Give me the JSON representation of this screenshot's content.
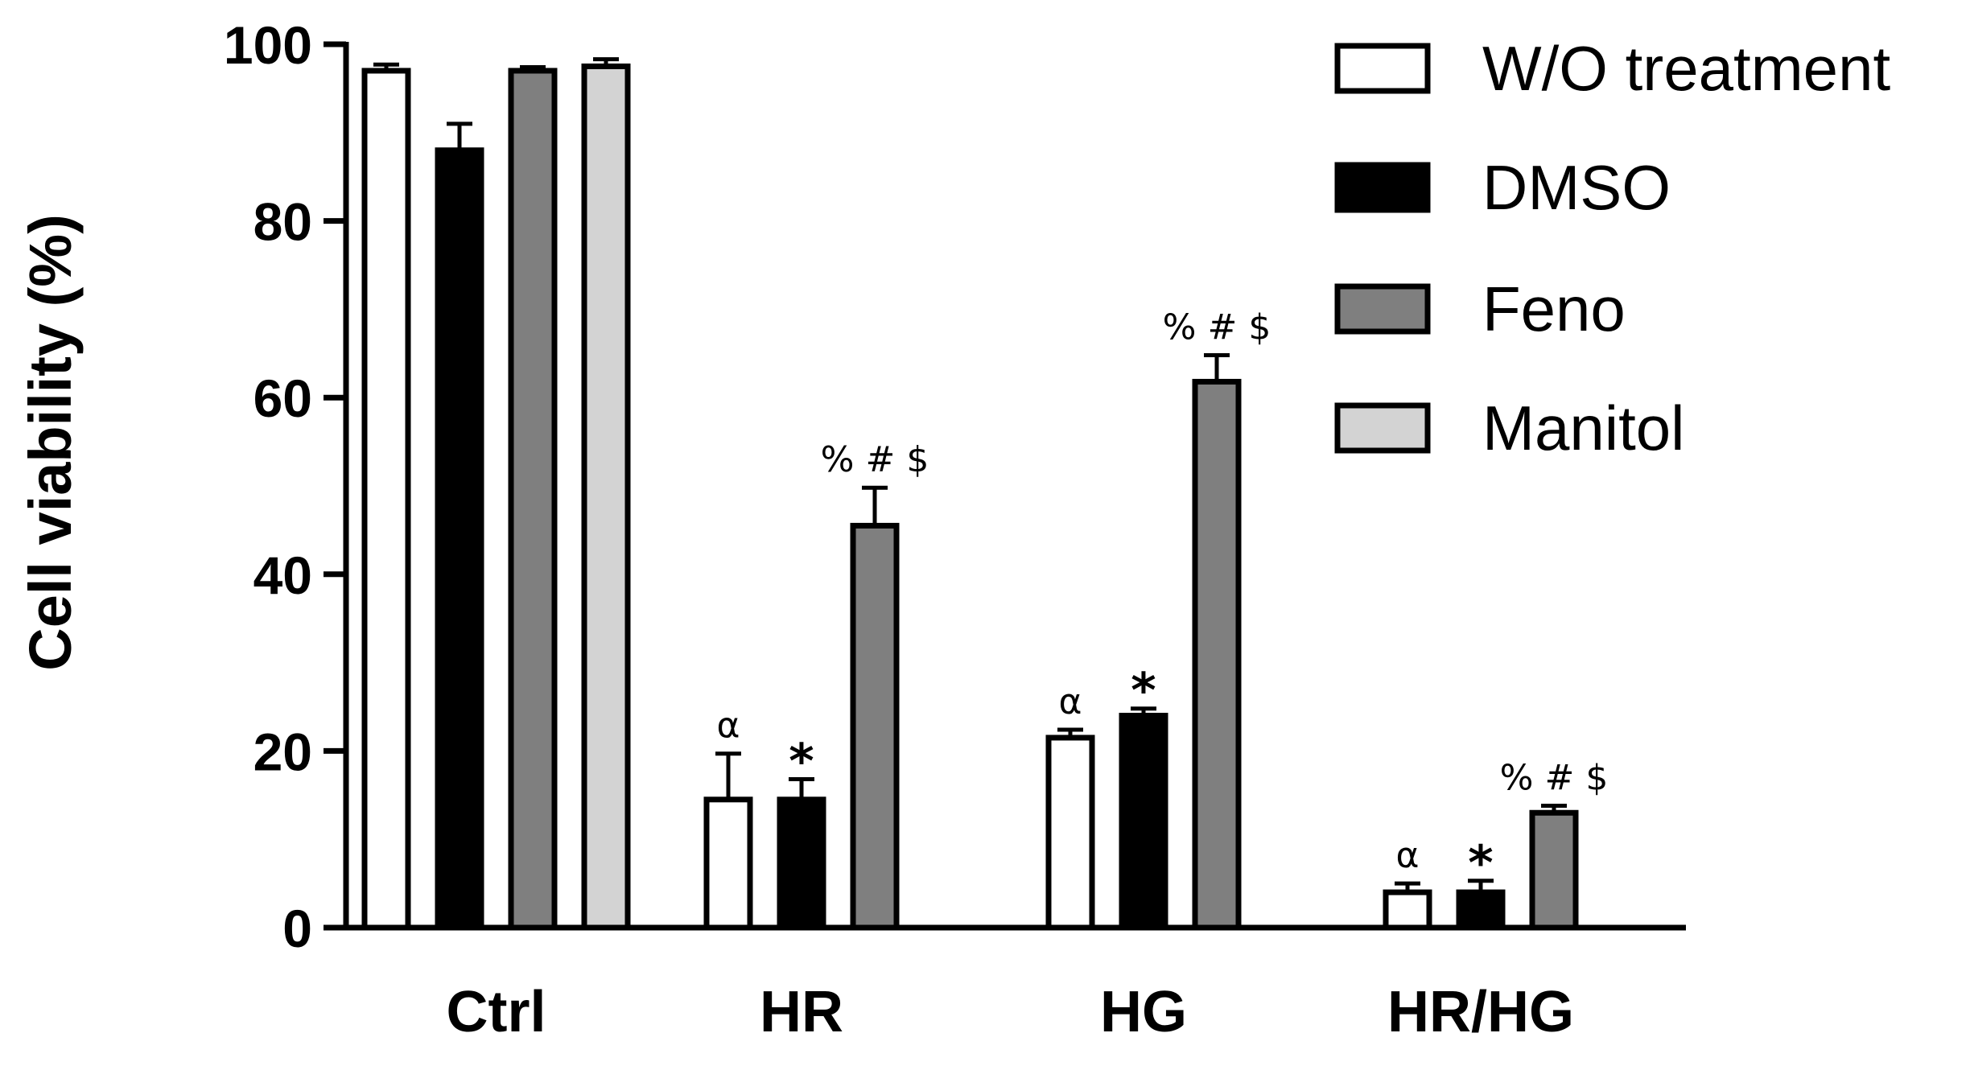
{
  "chart_data": {
    "type": "bar",
    "ylabel": "Cell viability (%)",
    "xlabel": "",
    "ylim": [
      0,
      100
    ],
    "yticks": [
      0,
      20,
      40,
      60,
      80,
      100
    ],
    "categories": [
      "Ctrl",
      "HR",
      "HG",
      "HR/HG"
    ],
    "series": [
      {
        "name": "W/O treatment",
        "color": "#ffffff",
        "values": [
          97,
          14.5,
          21.5,
          4
        ],
        "errors": [
          0.7,
          5.2,
          0.9,
          1
        ]
      },
      {
        "name": "DMSO",
        "color": "#000000",
        "values": [
          88,
          14.5,
          24,
          4
        ],
        "errors": [
          3,
          2.3,
          0.8,
          1.3
        ]
      },
      {
        "name": "Feno",
        "color": "#7f7f7f",
        "values": [
          97,
          45.5,
          61.8,
          13
        ],
        "errors": [
          0.4,
          4.3,
          3,
          0.8
        ]
      },
      {
        "name": "Manitol",
        "color": "#d3d3d3",
        "values": [
          97.5,
          null,
          null,
          null
        ],
        "errors": [
          0.8,
          null,
          null,
          null
        ]
      }
    ],
    "annotations": [
      {
        "category": "HR",
        "series": 0,
        "text": "α"
      },
      {
        "category": "HR",
        "series": 1,
        "text": "*"
      },
      {
        "category": "HR",
        "series": 2,
        "text": "% # $"
      },
      {
        "category": "HG",
        "series": 0,
        "text": "α"
      },
      {
        "category": "HG",
        "series": 1,
        "text": "*"
      },
      {
        "category": "HG",
        "series": 2,
        "text": "% # $"
      },
      {
        "category": "HR/HG",
        "series": 0,
        "text": "α"
      },
      {
        "category": "HR/HG",
        "series": 1,
        "text": "*"
      },
      {
        "category": "HR/HG",
        "series": 2,
        "text": "% # $"
      }
    ],
    "legend_position": "top-right",
    "grid": false
  }
}
